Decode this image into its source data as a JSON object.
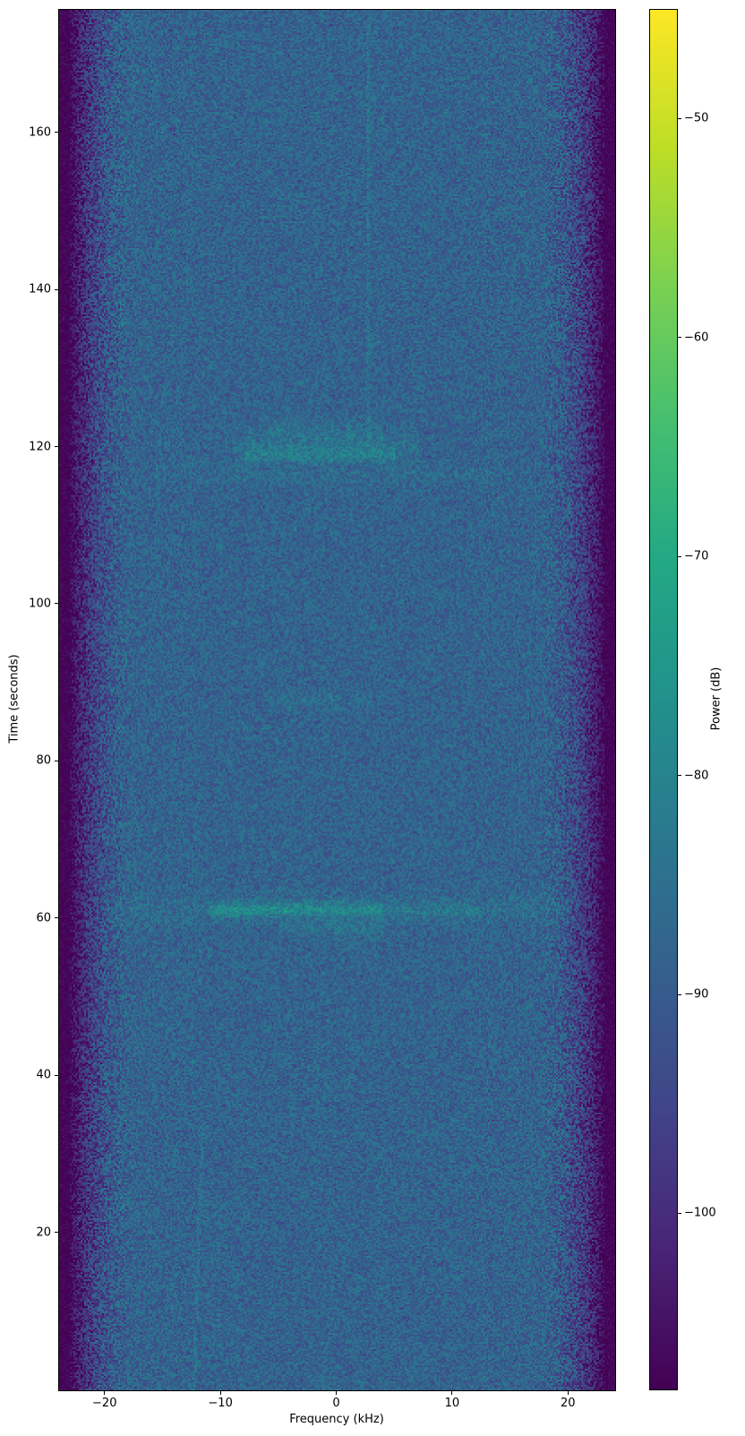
{
  "chart_data": {
    "type": "heatmap",
    "subtype": "spectrogram",
    "title": "",
    "xlabel": "Frequency (kHz)",
    "ylabel": "Time (seconds)",
    "colorbar_label": "Power (dB)",
    "xlim": [
      -24,
      24
    ],
    "ylim": [
      0,
      175.7
    ],
    "clim": [
      -108,
      -45
    ],
    "grid": false,
    "xticks": {
      "values": [
        -20,
        -10,
        0,
        10,
        20
      ],
      "labels": [
        "−20",
        "−10",
        "0",
        "10",
        "20"
      ]
    },
    "yticks": {
      "values": [
        20,
        40,
        60,
        80,
        100,
        120,
        140,
        160
      ],
      "labels": [
        "20",
        "40",
        "60",
        "80",
        "100",
        "120",
        "140",
        "160"
      ]
    },
    "colorbar_ticks": {
      "values": [
        -50,
        -60,
        -70,
        -80,
        -90,
        -100
      ],
      "labels": [
        "−50",
        "−60",
        "−70",
        "−80",
        "−90",
        "−100"
      ]
    },
    "colormap": {
      "name": "viridis",
      "stops": [
        "#440154",
        "#482475",
        "#414487",
        "#355f8d",
        "#2a788e",
        "#21918c",
        "#22a884",
        "#44bf70",
        "#7ad151",
        "#bdde26",
        "#fde725"
      ]
    },
    "background_noise": {
      "floor_db": -88,
      "jitter_db": 6,
      "passband_khz": 17.5,
      "stopband_khz": 23.0,
      "stopband_floor_db": -107
    },
    "events": {
      "bands": [
        {
          "time_s": 61.2,
          "sigma_s": 0.9,
          "f_from_khz": -11.0,
          "f_to_khz": 4.0,
          "boost_db": 10
        },
        {
          "time_s": 61.2,
          "sigma_s": 0.9,
          "f_from_khz": 4.0,
          "f_to_khz": 12.5,
          "boost_db": 4
        },
        {
          "time_s": 61.2,
          "sigma_s": 2.2,
          "f_from_khz": -20.0,
          "f_to_khz": 20.0,
          "boost_db": 2.5
        },
        {
          "time_s": 58.8,
          "sigma_s": 1.0,
          "f_from_khz": -5.0,
          "f_to_khz": 4.0,
          "boost_db": 4
        },
        {
          "time_s": 119.0,
          "sigma_s": 0.9,
          "f_from_khz": -8.0,
          "f_to_khz": 5.0,
          "boost_db": 7
        },
        {
          "time_s": 120.5,
          "sigma_s": 1.8,
          "f_from_khz": -9.0,
          "f_to_khz": 7.0,
          "boost_db": 4
        },
        {
          "time_s": 122.5,
          "sigma_s": 1.5,
          "f_from_khz": -6.0,
          "f_to_khz": 4.0,
          "boost_db": 2.5
        },
        {
          "time_s": 116.5,
          "sigma_s": 1.5,
          "f_from_khz": -16.0,
          "f_to_khz": 14.0,
          "boost_db": 2
        },
        {
          "time_s": 87.8,
          "sigma_s": 1.2,
          "f_from_khz": -6.0,
          "f_to_khz": 3.0,
          "boost_db": 2.5
        }
      ],
      "tones": [
        {
          "f_start_khz": 2.7,
          "f_end_khz": 2.7,
          "t_start_s": 120,
          "t_end_s": 175.7,
          "boost_db": 3.5
        },
        {
          "f_start_khz": -12.4,
          "f_end_khz": -11.6,
          "t_start_s": 0,
          "t_end_s": 34,
          "boost_db": 3.5
        }
      ]
    }
  }
}
